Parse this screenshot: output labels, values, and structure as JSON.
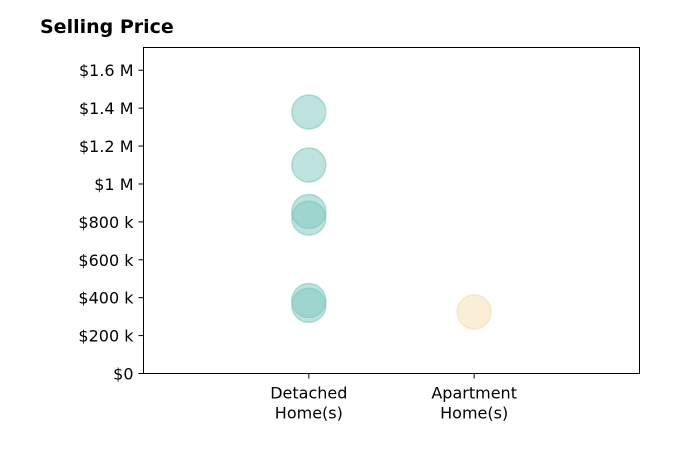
{
  "chart_data": {
    "type": "scatter",
    "title": "Selling Price",
    "xlabel": "",
    "ylabel": "",
    "categories": [
      "Detached\nHome(s)",
      "Apartment\nHome(s)"
    ],
    "xlim": [
      -1,
      2
    ],
    "ylim": [
      0,
      1720000
    ],
    "grid": false,
    "y_ticks": [
      0,
      200000,
      400000,
      600000,
      800000,
      1000000,
      1200000,
      1400000,
      1600000
    ],
    "y_tick_labels": [
      "$0",
      "$200 k",
      "$400 k",
      "$600 k",
      "$800 k",
      "$1 M",
      "$1.2 M",
      "$1.4 M",
      "$1.6 M"
    ],
    "series": [
      {
        "category": "Detached\nHome(s)",
        "color": "#7ec8be",
        "values": [
          1380000,
          1100000,
          855000,
          820000,
          385000,
          360000
        ]
      },
      {
        "category": "Apartment\nHome(s)",
        "color": "#f5deb0",
        "values": [
          325000
        ]
      }
    ]
  }
}
